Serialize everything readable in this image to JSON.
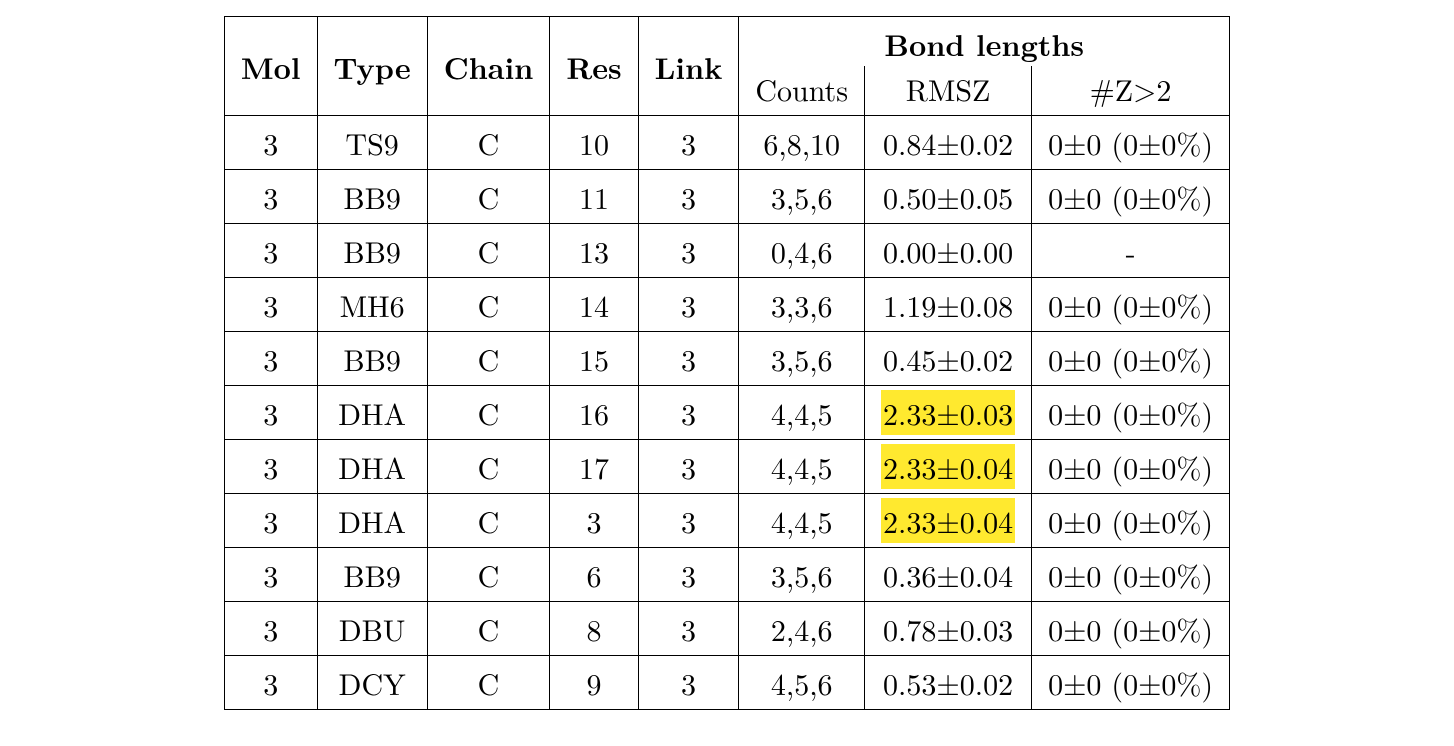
{
  "type": "table",
  "headers": {
    "mol": "Mol",
    "type": "Type",
    "chain": "Chain",
    "res": "Res",
    "link": "Link",
    "group": "Bond lengths",
    "counts": "Counts",
    "rmsz": "RMSZ",
    "z2": "#Z>2"
  },
  "highlight_color": "#ffe92f",
  "rows": [
    {
      "mol": "3",
      "type": "TS9",
      "chain": "C",
      "res": "10",
      "link": "3",
      "counts": "6,8,10",
      "rmsz": "0.84±0.02",
      "rmsz_hl": false,
      "z2": "0±0 (0±0%)"
    },
    {
      "mol": "3",
      "type": "BB9",
      "chain": "C",
      "res": "11",
      "link": "3",
      "counts": "3,5,6",
      "rmsz": "0.50±0.05",
      "rmsz_hl": false,
      "z2": "0±0 (0±0%)"
    },
    {
      "mol": "3",
      "type": "BB9",
      "chain": "C",
      "res": "13",
      "link": "3",
      "counts": "0,4,6",
      "rmsz": "0.00±0.00",
      "rmsz_hl": false,
      "z2": "-"
    },
    {
      "mol": "3",
      "type": "MH6",
      "chain": "C",
      "res": "14",
      "link": "3",
      "counts": "3,3,6",
      "rmsz": "1.19±0.08",
      "rmsz_hl": false,
      "z2": "0±0 (0±0%)"
    },
    {
      "mol": "3",
      "type": "BB9",
      "chain": "C",
      "res": "15",
      "link": "3",
      "counts": "3,5,6",
      "rmsz": "0.45±0.02",
      "rmsz_hl": false,
      "z2": "0±0 (0±0%)"
    },
    {
      "mol": "3",
      "type": "DHA",
      "chain": "C",
      "res": "16",
      "link": "3",
      "counts": "4,4,5",
      "rmsz": "2.33±0.03",
      "rmsz_hl": true,
      "z2": "0±0 (0±0%)"
    },
    {
      "mol": "3",
      "type": "DHA",
      "chain": "C",
      "res": "17",
      "link": "3",
      "counts": "4,4,5",
      "rmsz": "2.33±0.04",
      "rmsz_hl": true,
      "z2": "0±0 (0±0%)"
    },
    {
      "mol": "3",
      "type": "DHA",
      "chain": "C",
      "res": "3",
      "link": "3",
      "counts": "4,4,5",
      "rmsz": "2.33±0.04",
      "rmsz_hl": true,
      "z2": "0±0 (0±0%)"
    },
    {
      "mol": "3",
      "type": "BB9",
      "chain": "C",
      "res": "6",
      "link": "3",
      "counts": "3,5,6",
      "rmsz": "0.36±0.04",
      "rmsz_hl": false,
      "z2": "0±0 (0±0%)"
    },
    {
      "mol": "3",
      "type": "DBU",
      "chain": "C",
      "res": "8",
      "link": "3",
      "counts": "2,4,6",
      "rmsz": "0.78±0.03",
      "rmsz_hl": false,
      "z2": "0±0 (0±0%)"
    },
    {
      "mol": "3",
      "type": "DCY",
      "chain": "C",
      "res": "9",
      "link": "3",
      "counts": "4,5,6",
      "rmsz": "0.53±0.02",
      "rmsz_hl": false,
      "z2": "0±0 (0±0%)"
    }
  ]
}
